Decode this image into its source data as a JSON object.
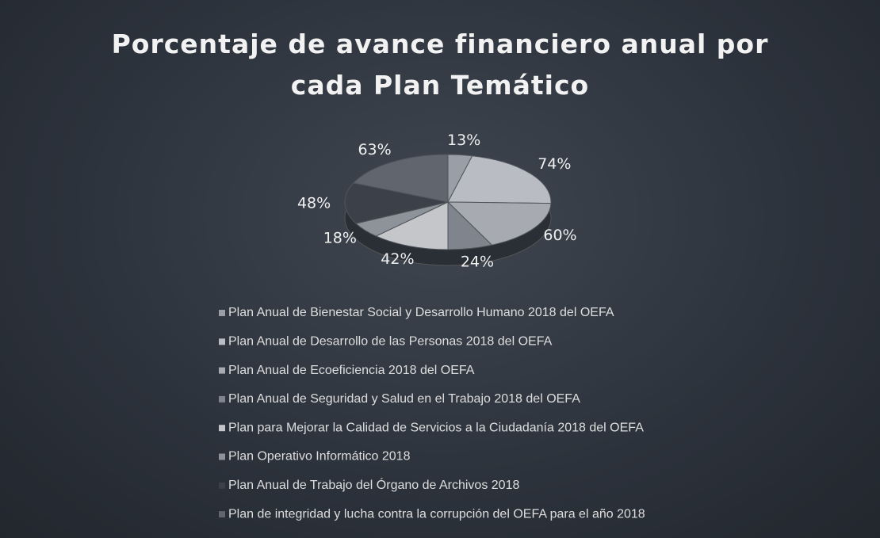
{
  "chart_data": {
    "type": "pie",
    "title": "Porcentaje de avance financiero anual por cada Plan Temático",
    "categories": [
      "Plan Anual de Bienestar Social y Desarrollo Humano 2018 del OEFA",
      "Plan Anual de Desarrollo de las Personas 2018 del OEFA",
      "Plan Anual de Ecoeficiencia 2018 del OEFA",
      "Plan Anual de Seguridad y Salud en el Trabajo 2018 del OEFA",
      "Plan para Mejorar la Calidad de Servicios a la Ciudadanía 2018 del OEFA",
      "Plan Operativo Informático 2018",
      "Plan Anual de Trabajo del Órgano de Archivos 2018",
      "Plan de integridad y lucha contra la corrupción del OEFA para el año 2018"
    ],
    "values": [
      13,
      74,
      60,
      24,
      42,
      18,
      48,
      63
    ],
    "value_labels": [
      "13%",
      "74%",
      "60%",
      "24%",
      "42%",
      "18%",
      "48%",
      "63%"
    ],
    "colors": [
      "#9a9ea6",
      "#b9bcc2",
      "#a7aab0",
      "#80848c",
      "#c4c6ca",
      "#8e9299",
      "#3c4048",
      "#61656d"
    ]
  }
}
